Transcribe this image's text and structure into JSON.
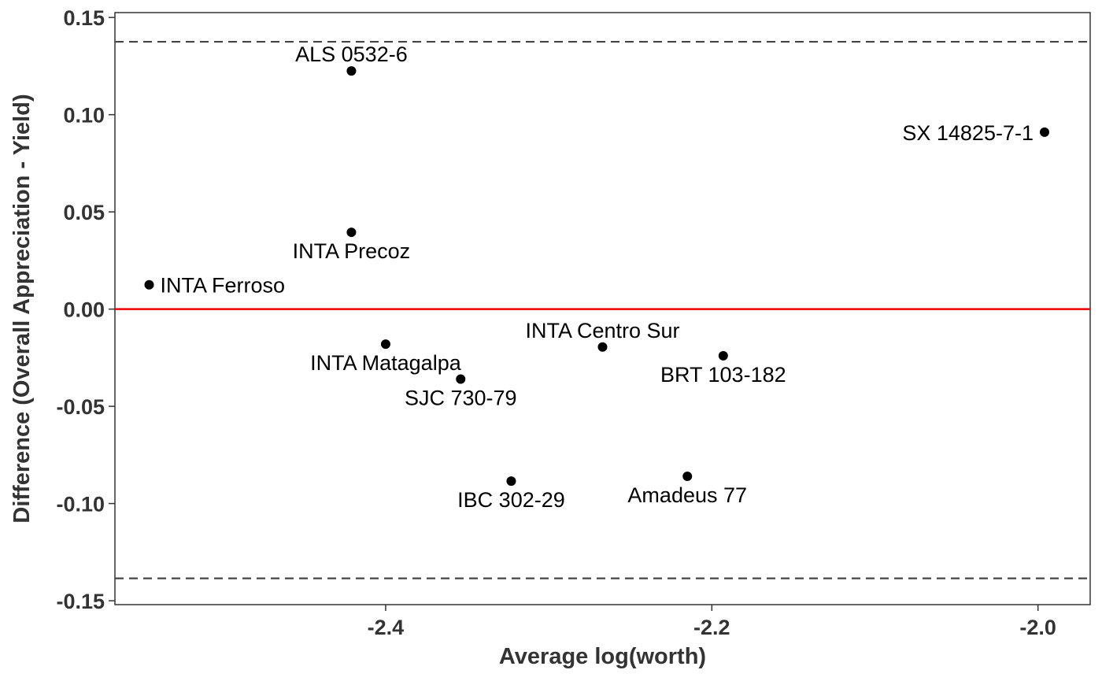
{
  "chart_data": {
    "type": "scatter",
    "title": "",
    "xlabel": "Average log(worth)",
    "ylabel": "Difference (Overall Appreciation - Yield)",
    "xlim": [
      -2.566,
      -1.968
    ],
    "ylim": [
      -0.152,
      0.1525
    ],
    "x_ticks": [
      {
        "value": -2.4,
        "label": "-2.4"
      },
      {
        "value": -2.2,
        "label": "-2.2"
      },
      {
        "value": -2.0,
        "label": "-2.0"
      }
    ],
    "y_ticks": [
      {
        "value": 0.15,
        "label": "0.15"
      },
      {
        "value": 0.1,
        "label": "0.10"
      },
      {
        "value": 0.05,
        "label": "0.05"
      },
      {
        "value": 0.0,
        "label": "0.00"
      },
      {
        "value": -0.05,
        "label": "-0.05"
      },
      {
        "value": -0.1,
        "label": "-0.10"
      },
      {
        "value": -0.15,
        "label": "-0.15"
      }
    ],
    "grid": false,
    "reference_lines": [
      {
        "kind": "horizontal",
        "y": 0.0,
        "style": "solid",
        "color": "#ee0000"
      },
      {
        "kind": "horizontal",
        "y": 0.1375,
        "style": "dashed",
        "color": "#444444"
      },
      {
        "kind": "horizontal",
        "y": -0.1385,
        "style": "dashed",
        "color": "#444444"
      }
    ],
    "points": [
      {
        "label": "ALS 0532-6",
        "x": -2.421,
        "y": 0.1225,
        "label_pos": "above"
      },
      {
        "label": "SX 14825-7-1",
        "x": -1.996,
        "y": 0.091,
        "label_pos": "left"
      },
      {
        "label": "INTA Precoz",
        "x": -2.421,
        "y": 0.0395,
        "label_pos": "below"
      },
      {
        "label": "INTA Ferroso",
        "x": -2.545,
        "y": 0.0125,
        "label_pos": "right"
      },
      {
        "label": "INTA Centro Sur",
        "x": -2.267,
        "y": -0.0195,
        "label_pos": "above"
      },
      {
        "label": "INTA Matagalpa",
        "x": -2.4,
        "y": -0.018,
        "label_pos": "below"
      },
      {
        "label": "BRT 103-182",
        "x": -2.193,
        "y": -0.024,
        "label_pos": "below"
      },
      {
        "label": "SJC 730-79",
        "x": -2.354,
        "y": -0.036,
        "label_pos": "below"
      },
      {
        "label": "IBC 302-29",
        "x": -2.323,
        "y": -0.0885,
        "label_pos": "below"
      },
      {
        "label": "Amadeus 77",
        "x": -2.215,
        "y": -0.086,
        "label_pos": "below"
      }
    ],
    "colors": {
      "points": "#000000",
      "zero_line": "#ee0000",
      "limit_lines": "#444444",
      "axis": "#333333"
    }
  }
}
